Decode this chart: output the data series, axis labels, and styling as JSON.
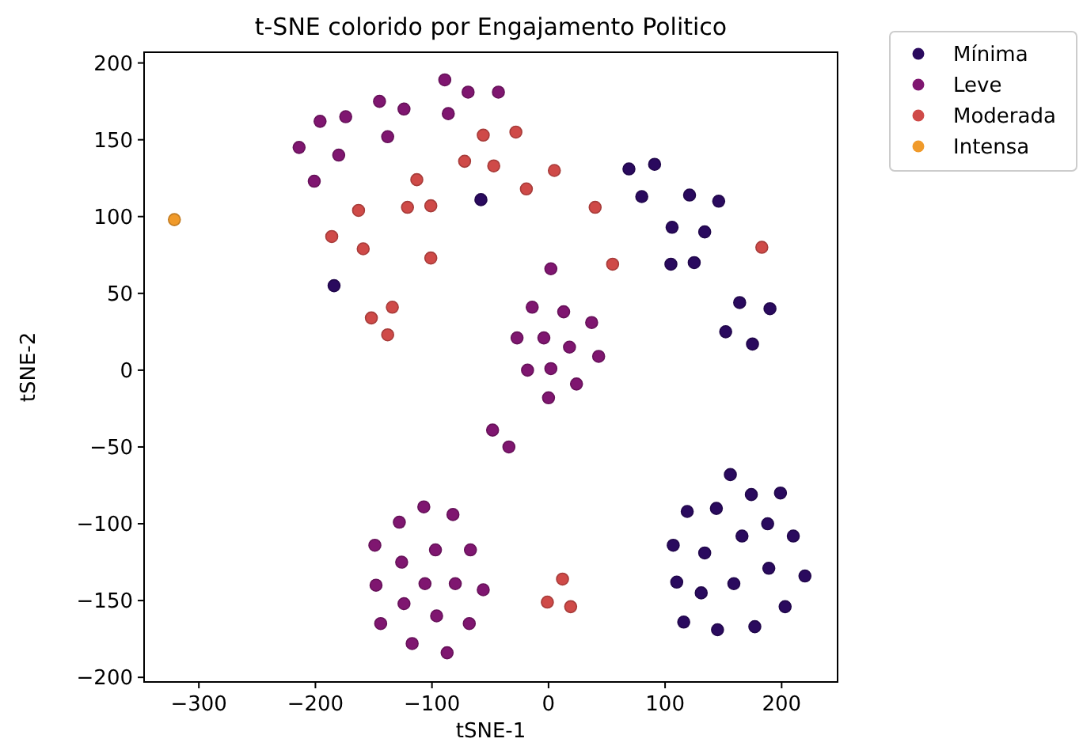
{
  "chart_data": {
    "type": "scatter",
    "title": "t-SNE colorido por Engajamento Politico",
    "xlabel": "tSNE-1",
    "ylabel": "tSNE-2",
    "xlim": [
      -347,
      248
    ],
    "ylim": [
      -203,
      207
    ],
    "xticks": [
      {
        "value": -300,
        "label": "−300"
      },
      {
        "value": -200,
        "label": "−200"
      },
      {
        "value": -100,
        "label": "−100"
      },
      0,
      100,
      200
    ],
    "yticks": [
      {
        "value": -200,
        "label": "−200"
      },
      {
        "value": -150,
        "label": "−150"
      },
      {
        "value": -100,
        "label": "−100"
      },
      {
        "value": -50,
        "label": "−50"
      },
      0,
      50,
      100,
      150,
      200
    ],
    "legend": "top right",
    "marker": "circle",
    "series": [
      {
        "name": "Mínima",
        "color": "#2a0a5e",
        "x": [
          -58,
          -184,
          69,
          91,
          80,
          121,
          146,
          106,
          134,
          105,
          125,
          164,
          190,
          152,
          175,
          156,
          174,
          199,
          119,
          144,
          188,
          166,
          210,
          107,
          134,
          189,
          220,
          110,
          159,
          131,
          203,
          116,
          145,
          177
        ],
        "values": [
          111,
          55,
          131,
          134,
          113,
          114,
          110,
          93,
          90,
          69,
          70,
          44,
          40,
          25,
          17,
          -68,
          -81,
          -80,
          -92,
          -90,
          -100,
          -108,
          -108,
          -114,
          -119,
          -129,
          -134,
          -138,
          -139,
          -145,
          -154,
          -164,
          -169,
          -167
        ]
      },
      {
        "name": "Leve",
        "color": "#7f1670",
        "x": [
          -214,
          -196,
          -174,
          -201,
          -180,
          -145,
          -124,
          -138,
          -89,
          -69,
          -43,
          -86,
          2,
          -14,
          13,
          37,
          -27,
          -4,
          18,
          43,
          -18,
          2,
          24,
          0,
          -48,
          -34,
          -107,
          -128,
          -82,
          -149,
          -97,
          -67,
          -126,
          -148,
          -106,
          -80,
          -56,
          -124,
          -96,
          -144,
          -68,
          -117,
          -87
        ],
        "values": [
          145,
          162,
          165,
          123,
          140,
          175,
          170,
          152,
          189,
          181,
          181,
          167,
          66,
          41,
          38,
          31,
          21,
          21,
          15,
          9,
          0,
          1,
          -9,
          -18,
          -39,
          -50,
          -89,
          -99,
          -94,
          -114,
          -117,
          -117,
          -125,
          -140,
          -139,
          -139,
          -143,
          -152,
          -160,
          -165,
          -165,
          -178,
          -184
        ]
      },
      {
        "name": "Moderada",
        "color": "#cf4a48",
        "x": [
          -56,
          -28,
          -72,
          -47,
          -19,
          5,
          -113,
          -163,
          -121,
          -101,
          -186,
          -159,
          -101,
          -134,
          -152,
          -138,
          40,
          183,
          55,
          12,
          -1,
          19
        ],
        "values": [
          153,
          155,
          136,
          133,
          118,
          130,
          124,
          104,
          106,
          107,
          87,
          79,
          73,
          41,
          34,
          23,
          106,
          80,
          69,
          -136,
          -151,
          -154
        ]
      },
      {
        "name": "Intensa",
        "color": "#f09a2a",
        "x": [
          -321
        ],
        "values": [
          98
        ]
      }
    ]
  }
}
